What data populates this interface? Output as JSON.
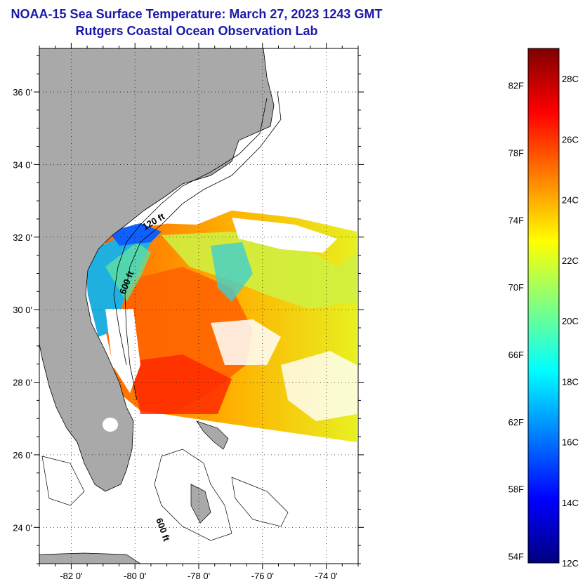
{
  "header": {
    "title": "NOAA-15 Sea Surface Temperature:  March 27, 2023 1243 GMT",
    "subtitle": "Rutgers Coastal Ocean Observation Lab"
  },
  "map": {
    "lat_range": [
      23,
      37.2
    ],
    "lon_range": [
      -83,
      -73
    ],
    "lat_ticks": [
      {
        "value": 36,
        "label": "36 0'"
      },
      {
        "value": 34,
        "label": "34 0'"
      },
      {
        "value": 32,
        "label": "32 0'"
      },
      {
        "value": 30,
        "label": "30 0'"
      },
      {
        "value": 28,
        "label": "28 0'"
      },
      {
        "value": 26,
        "label": "26 0'"
      },
      {
        "value": 24,
        "label": "24 0'"
      }
    ],
    "lon_ticks": [
      {
        "value": -82,
        "label": "-82 0'"
      },
      {
        "value": -80,
        "label": "-80 0'"
      },
      {
        "value": -78,
        "label": "-78 0'"
      },
      {
        "value": -76,
        "label": "-76 0'"
      },
      {
        "value": -74,
        "label": "-74 0'"
      }
    ],
    "contour_labels": {
      "c120": "120 ft",
      "c600a": "600 ft",
      "c600b": "600 ft"
    },
    "colors": {
      "land": "#a9a9a9",
      "cloud": "#ffffff",
      "grid": "#000000"
    }
  },
  "colorbar": {
    "range_c": [
      12,
      29
    ],
    "celsius_ticks": [
      {
        "value": 28,
        "label": "28C"
      },
      {
        "value": 26,
        "label": "26C"
      },
      {
        "value": 24,
        "label": "24C"
      },
      {
        "value": 22,
        "label": "22C"
      },
      {
        "value": 20,
        "label": "20C"
      },
      {
        "value": 18,
        "label": "18C"
      },
      {
        "value": 16,
        "label": "16C"
      },
      {
        "value": 14,
        "label": "14C"
      },
      {
        "value": 12,
        "label": "12C"
      }
    ],
    "fahrenheit_ticks": [
      {
        "value": 82,
        "label": "82F"
      },
      {
        "value": 78,
        "label": "78F"
      },
      {
        "value": 74,
        "label": "74F"
      },
      {
        "value": 70,
        "label": "70F"
      },
      {
        "value": 66,
        "label": "66F"
      },
      {
        "value": 62,
        "label": "62F"
      },
      {
        "value": 58,
        "label": "58F"
      },
      {
        "value": 54,
        "label": "54F"
      }
    ],
    "stops": [
      "#00007f",
      "#0000ff",
      "#0080ff",
      "#00ffff",
      "#80ff80",
      "#ffff00",
      "#ff8000",
      "#ff0000",
      "#7f0000"
    ]
  }
}
